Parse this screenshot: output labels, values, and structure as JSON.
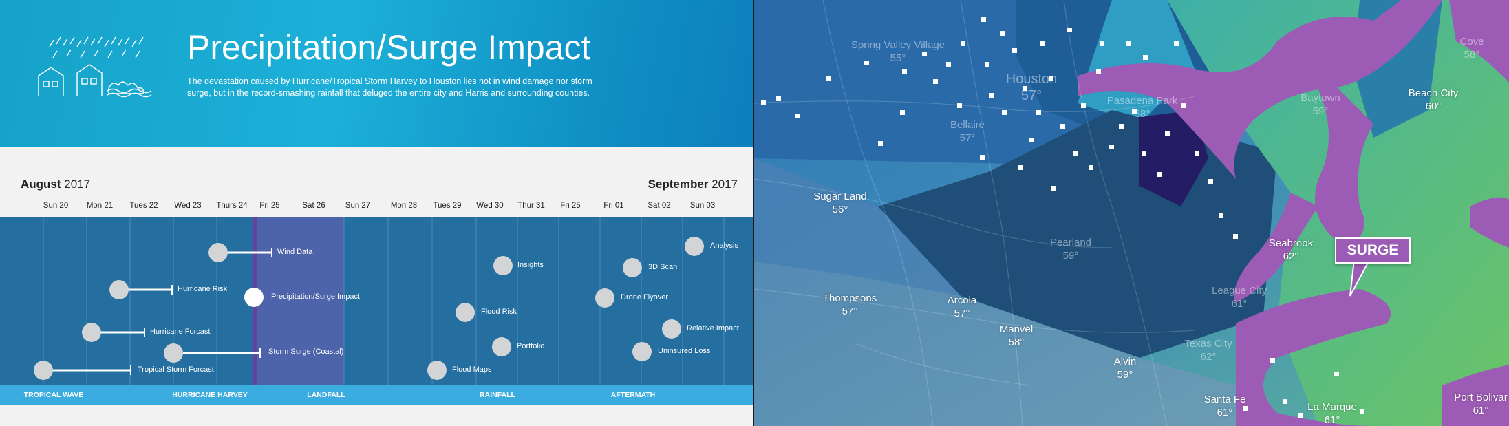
{
  "header": {
    "title": "Precipitation/Surge Impact",
    "description": "The devastation caused by Hurricane/Tropical Storm Harvey to Houston lies not in wind damage nor storm surge, but in the record-smashing rainfall that deluged the entire city and Harris and surrounding counties."
  },
  "months": {
    "left": {
      "name": "August",
      "year": "2017"
    },
    "right": {
      "name": "September",
      "year": "2017"
    }
  },
  "days": [
    "Sun 20",
    "Mon 21",
    "Tues 22",
    "Wed 23",
    "Thurs 24",
    "Fri 25",
    "Sat 26",
    "Sun 27",
    "Mon 28",
    "Tues 29",
    "Wed 30",
    "Thur 31",
    "Fri 25",
    "Fri 01",
    "Sat 02",
    "Sun 03"
  ],
  "events": [
    {
      "label": "Wind Data",
      "active": false
    },
    {
      "label": "Hurricane Risk",
      "active": false
    },
    {
      "label": "Precipitation/Surge Impact",
      "active": true
    },
    {
      "label": "Hurricane Forcast",
      "active": false
    },
    {
      "label": "Storm Surge (Coastal)",
      "active": false
    },
    {
      "label": "Tropical Storm Forcast",
      "active": false
    },
    {
      "label": "Insights",
      "active": false
    },
    {
      "label": "Flood Risk",
      "active": false
    },
    {
      "label": "Portfolio",
      "active": false
    },
    {
      "label": "Flood Maps",
      "active": false
    },
    {
      "label": "Analysis",
      "active": false
    },
    {
      "label": "3D Scan",
      "active": false
    },
    {
      "label": "Drone Flyover",
      "active": false
    },
    {
      "label": "Relative Impact",
      "active": false
    },
    {
      "label": "Uninsured Loss",
      "active": false
    }
  ],
  "phases": [
    "TROPICAL WAVE",
    "HURRICANE HARVEY",
    "LANDFALL",
    "RAINFALL",
    "AFTERMATH"
  ],
  "map": {
    "cities": [
      {
        "name": "Spring Valley Village",
        "temp": "55°",
        "faint": true
      },
      {
        "name": "Houston",
        "temp": "57°",
        "faint": true,
        "big": true
      },
      {
        "name": "Pasadena Park",
        "temp": "58°",
        "faint": true
      },
      {
        "name": "Bellaire",
        "temp": "57°",
        "faint": true
      },
      {
        "name": "Baytown",
        "temp": "59°",
        "faint": true
      },
      {
        "name": "Beach City",
        "temp": "60°",
        "faint": false
      },
      {
        "name": "Cove",
        "temp": "58°",
        "faint": true
      },
      {
        "name": "Sugar Land",
        "temp": "56°",
        "faint": false
      },
      {
        "name": "Pearland",
        "temp": "59°",
        "faint": true
      },
      {
        "name": "Seabrook",
        "temp": "62°",
        "faint": false
      },
      {
        "name": "League City",
        "temp": "61°",
        "faint": true
      },
      {
        "name": "Thompsons",
        "temp": "57°",
        "faint": false
      },
      {
        "name": "Arcola",
        "temp": "57°",
        "faint": false
      },
      {
        "name": "Manvel",
        "temp": "58°",
        "faint": false
      },
      {
        "name": "Alvin",
        "temp": "59°",
        "faint": false
      },
      {
        "name": "Santa Fe",
        "temp": "61°",
        "faint": false
      },
      {
        "name": "La Marque",
        "temp": "61°",
        "faint": false
      },
      {
        "name": "Port Bolivar",
        "temp": "61°",
        "faint": false
      },
      {
        "name": "Texas City",
        "temp": "62°",
        "faint": true
      }
    ],
    "surge_label": "SURGE",
    "colors": {
      "surge": "#9c5bb4",
      "flood_dark": "#1b4d73",
      "active": "#6b3fa0"
    }
  }
}
